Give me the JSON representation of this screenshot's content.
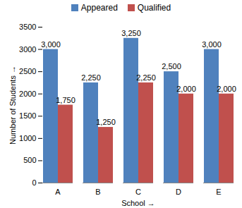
{
  "chart_data": {
    "type": "bar",
    "x_label": "School →",
    "y_label": "Number of Students",
    "categories": [
      "A",
      "B",
      "C",
      "D",
      "E"
    ],
    "series": [
      {
        "name": "Appeared",
        "color": "#4f81bd",
        "values": [
          3000,
          2250,
          3250,
          2500,
          3000
        ],
        "value_labels": [
          "3,000",
          "2,250",
          "3,250",
          "2,500",
          "3,000"
        ]
      },
      {
        "name": "Qualified",
        "color": "#c0504d",
        "values": [
          1750,
          1250,
          2250,
          2000,
          2000
        ],
        "value_labels": [
          "1,750",
          "1,250",
          "2,250",
          "2,000",
          "2,000"
        ]
      }
    ],
    "ylim": [
      0,
      3500
    ],
    "yticks": [
      0,
      500,
      1000,
      1500,
      2000,
      2500,
      3000,
      3500
    ],
    "grid": false,
    "legend": "top",
    "data_labels": true
  }
}
